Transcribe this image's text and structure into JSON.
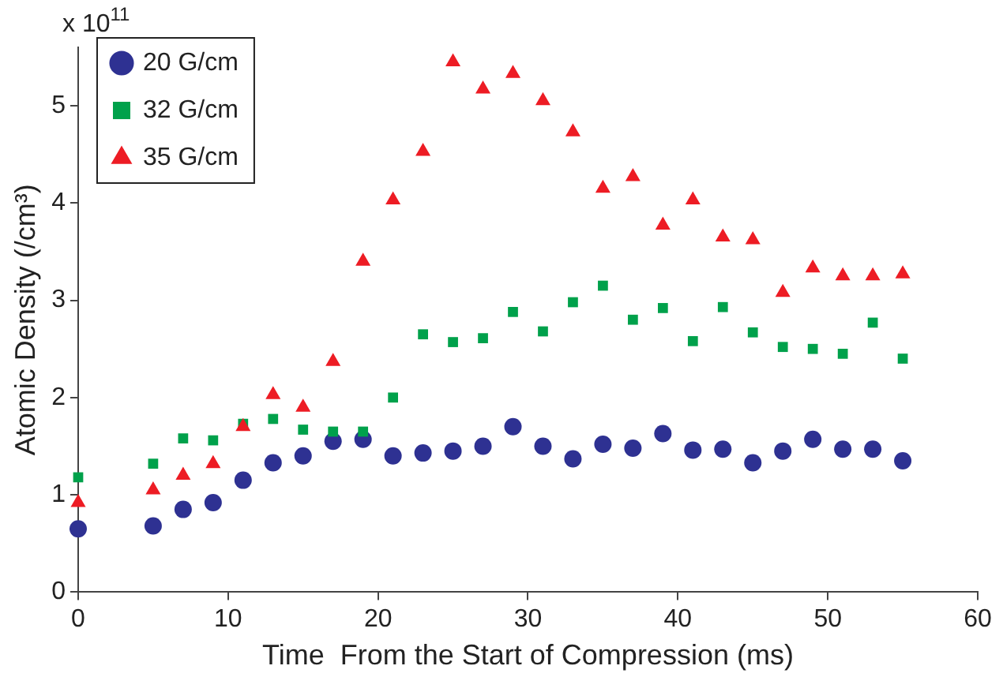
{
  "chart_data": {
    "type": "scatter",
    "xlabel": "Time  From the Start of Compression (ms)",
    "ylabel": "Atomic Density (/cm³)",
    "annotations": [
      "x 10$^{11}$"
    ],
    "x": [
      0,
      5,
      7,
      9,
      11,
      13,
      15,
      17,
      19,
      21,
      23,
      25,
      27,
      29,
      31,
      33,
      35,
      37,
      39,
      41,
      43,
      45,
      47,
      49,
      51,
      53,
      55
    ],
    "series": [
      {
        "name": "20 G/cm",
        "color": "#2e3192",
        "marker": "circle",
        "values": [
          0.65,
          0.68,
          0.85,
          0.92,
          1.15,
          1.33,
          1.4,
          1.55,
          1.57,
          1.4,
          1.43,
          1.45,
          1.5,
          1.7,
          1.5,
          1.37,
          1.52,
          1.48,
          1.63,
          1.46,
          1.47,
          1.33,
          1.45,
          1.57,
          1.47,
          1.47,
          1.35
        ]
      },
      {
        "name": "32 G/cm",
        "color": "#00a14b",
        "marker": "square",
        "values": [
          1.18,
          1.32,
          1.58,
          1.56,
          1.73,
          1.78,
          1.67,
          1.65,
          1.65,
          2.0,
          2.65,
          2.57,
          2.61,
          2.88,
          2.68,
          2.98,
          3.15,
          2.8,
          2.92,
          2.58,
          2.93,
          2.67,
          2.52,
          2.5,
          2.45,
          2.77,
          2.4
        ]
      },
      {
        "name": "35 G/cm",
        "color": "#ed1c24",
        "marker": "triangle",
        "values": [
          0.92,
          1.05,
          1.2,
          1.32,
          1.7,
          2.03,
          1.9,
          2.37,
          3.4,
          4.03,
          4.53,
          5.45,
          5.17,
          5.33,
          5.05,
          4.73,
          4.15,
          4.27,
          3.77,
          4.03,
          3.65,
          3.62,
          3.08,
          3.33,
          3.25,
          3.25,
          3.27
        ]
      }
    ],
    "xlim": [
      0,
      60
    ],
    "xticks": [
      0,
      10,
      20,
      30,
      40,
      50,
      60
    ],
    "ylim": [
      0,
      5.6
    ],
    "yticks": [
      0,
      1,
      2,
      3,
      4,
      5
    ],
    "grid": false,
    "legend": "top left"
  }
}
